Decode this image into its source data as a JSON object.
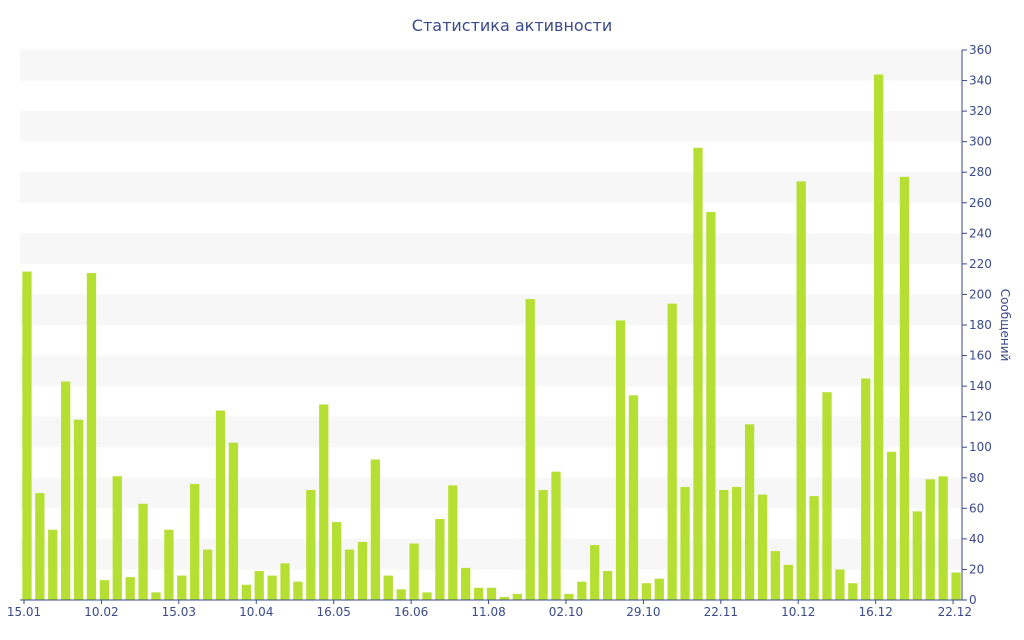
{
  "chart_data": {
    "type": "bar",
    "title": "Статистика активности",
    "xlabel": "",
    "ylabel": "Сообщений",
    "ylim": [
      0,
      360
    ],
    "yticks": [
      0,
      20,
      40,
      60,
      80,
      100,
      120,
      140,
      160,
      180,
      200,
      220,
      240,
      260,
      280,
      300,
      320,
      340,
      360
    ],
    "grid": "alternating horizontal bands",
    "y_axis_position": "right",
    "x_tick_labels": [
      "15.01",
      "10.02",
      "15.03",
      "10.04",
      "16.05",
      "16.06",
      "11.08",
      "02.10",
      "29.10",
      "22.11",
      "10.12",
      "16.12",
      "22.12"
    ],
    "x_tick_label_indices": [
      0,
      6,
      12,
      18,
      24,
      30,
      36,
      42,
      48,
      54,
      60,
      66,
      72
    ],
    "values": [
      215,
      70,
      46,
      143,
      118,
      214,
      13,
      81,
      15,
      63,
      5,
      46,
      16,
      76,
      33,
      124,
      103,
      10,
      19,
      16,
      24,
      12,
      72,
      128,
      51,
      33,
      38,
      92,
      16,
      7,
      37,
      5,
      53,
      75,
      21,
      8,
      8,
      2,
      4,
      197,
      72,
      84,
      4,
      12,
      36,
      19,
      183,
      134,
      11,
      14,
      194,
      74,
      296,
      254,
      72,
      74,
      115,
      69,
      32,
      23,
      274,
      68,
      136,
      20,
      11,
      145,
      344,
      97,
      277,
      58,
      79,
      81,
      18
    ],
    "colors": {
      "bar": "#b5e033",
      "band": "#f7f7f7",
      "text": "#3a4a8a",
      "axis": "#3a4a8a"
    }
  }
}
